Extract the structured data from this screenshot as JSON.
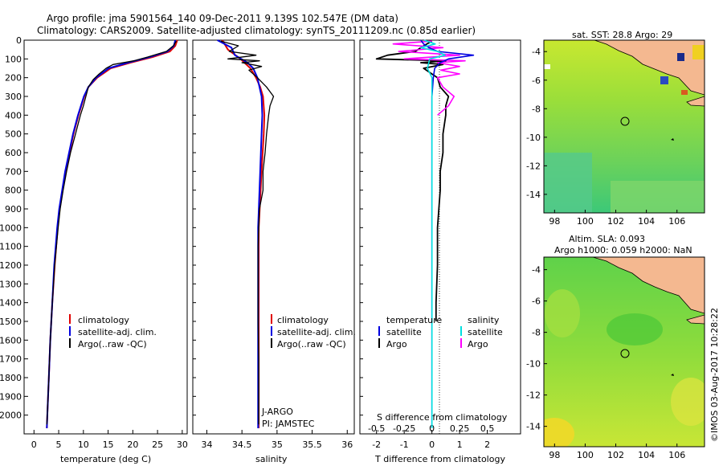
{
  "header": {
    "line1": "Argo profile: jma 5901564_140 09-Dec-2011 9.139S 102.547E (DM data)",
    "line2": "Climatology: CARS2009. Satellite-adjusted climatology: synTS_20111209.nc (0.85d earlier)"
  },
  "colors": {
    "climatology": "#e00000",
    "satellite": "#0000e0",
    "argo": "#000000",
    "sal_sat": "#00e0e0",
    "sal_argo": "#ff00ff",
    "land": "#f4b890"
  },
  "chart_data": [
    {
      "type": "line",
      "name": "temperature",
      "xlabel": "temperature (deg C)",
      "ylabel": "",
      "xlim": [
        -2,
        31
      ],
      "ylim": [
        2100,
        0
      ],
      "xticks": [
        "0",
        "5",
        "10",
        "15",
        "20",
        "25",
        "30"
      ],
      "yticks": [
        "0",
        "100",
        "200",
        "300",
        "400",
        "500",
        "600",
        "700",
        "800",
        "900",
        "1000",
        "1100",
        "1200",
        "1300",
        "1400",
        "1500",
        "1600",
        "1700",
        "1800",
        "1900",
        "2000"
      ],
      "legend": [
        "climatology",
        "satellite-adj. clim.",
        "Argo(..raw -QC)"
      ],
      "series": [
        {
          "name": "climatology",
          "depth": [
            0,
            30,
            60,
            90,
            120,
            150,
            200,
            250,
            300,
            400,
            500,
            600,
            700,
            800,
            900,
            1000,
            1200,
            1400,
            1600,
            1800,
            2000,
            2070
          ],
          "values": [
            29.0,
            28.6,
            27.5,
            24.0,
            19.5,
            15.5,
            12.8,
            11.0,
            10.2,
            9.0,
            8.0,
            7.2,
            6.4,
            5.8,
            5.2,
            4.8,
            4.2,
            3.7,
            3.3,
            3.0,
            2.7,
            2.6
          ]
        },
        {
          "name": "satellite-adj. clim.",
          "depth": [
            0,
            30,
            60,
            90,
            120,
            150,
            200,
            250,
            300,
            400,
            500,
            600,
            700,
            800,
            900,
            1000,
            1200,
            1400,
            1600,
            1800,
            2000,
            2070
          ],
          "values": [
            28.6,
            28.3,
            27.0,
            23.4,
            19.0,
            15.1,
            12.6,
            11.0,
            10.1,
            8.9,
            7.9,
            7.1,
            6.3,
            5.7,
            5.1,
            4.7,
            4.1,
            3.7,
            3.3,
            3.0,
            2.7,
            2.6
          ]
        },
        {
          "name": "Argo",
          "depth": [
            5,
            30,
            60,
            90,
            110,
            130,
            150,
            180,
            210,
            250,
            300,
            350,
            400,
            500,
            600,
            700,
            800,
            900,
            1000,
            1200,
            1400,
            1600,
            1800,
            2000,
            2050
          ],
          "values": [
            28.8,
            28.2,
            26.8,
            23.0,
            20.2,
            16.0,
            14.6,
            13.2,
            12.0,
            11.0,
            10.5,
            10.0,
            9.4,
            8.4,
            7.4,
            6.6,
            5.9,
            5.3,
            4.9,
            4.2,
            3.7,
            3.3,
            3.0,
            2.7,
            2.6
          ]
        }
      ]
    },
    {
      "type": "line",
      "name": "salinity",
      "xlabel": "salinity",
      "ylabel": "",
      "xlim": [
        33.8,
        36.1
      ],
      "ylim": [
        2100,
        0
      ],
      "xticks": [
        "34",
        "34.5",
        "35",
        "35.5",
        "36"
      ],
      "legend": [
        "climatology",
        "satellite-adj. clim.",
        "Argo(..raw -QC)"
      ],
      "series": [
        {
          "name": "climatology",
          "depth": [
            0,
            50,
            100,
            150,
            200,
            250,
            300,
            400,
            500,
            700,
            1000,
            1500,
            2070
          ],
          "values": [
            34.22,
            34.3,
            34.48,
            34.62,
            34.7,
            34.76,
            34.8,
            34.82,
            34.81,
            34.78,
            34.74,
            34.74,
            34.74
          ]
        },
        {
          "name": "satellite-adj. clim.",
          "depth": [
            0,
            40,
            80,
            120,
            150,
            200,
            250,
            300,
            400,
            500,
            700,
            1000,
            1500,
            2070
          ],
          "values": [
            34.15,
            34.35,
            34.4,
            34.58,
            34.66,
            34.72,
            34.75,
            34.78,
            34.79,
            34.78,
            34.76,
            34.73,
            34.73,
            34.73
          ]
        },
        {
          "name": "Argo",
          "depth": [
            5,
            30,
            60,
            80,
            100,
            110,
            120,
            140,
            160,
            200,
            250,
            300,
            350,
            400,
            500,
            600,
            700,
            800,
            900,
            1000,
            1100,
            1300,
            1500,
            1700,
            1900,
            2050
          ],
          "values": [
            34.2,
            34.45,
            34.32,
            34.7,
            34.3,
            34.75,
            34.5,
            34.78,
            34.6,
            34.72,
            34.85,
            34.95,
            34.9,
            34.88,
            34.85,
            34.83,
            34.8,
            34.8,
            34.75,
            34.74,
            34.73,
            34.73,
            34.73,
            34.74,
            34.74,
            34.74
          ]
        }
      ],
      "annotations": [
        "J-ARGO",
        "PI: JAMSTEC"
      ]
    },
    {
      "type": "line",
      "name": "differences",
      "xlabel": "T difference from climatology",
      "xlabel2": "S difference from climatology",
      "xlim_T": [
        -2.6,
        3.2
      ],
      "xlim_S": [
        -0.65,
        0.8
      ],
      "ylim": [
        2100,
        0
      ],
      "xticks": [
        "-2",
        "-1",
        "0",
        "1",
        "2"
      ],
      "xticks2": [
        "-0.5",
        "-0.25",
        "0",
        "0.25",
        "0.5"
      ],
      "legend_headers": [
        "temperature",
        "salinity"
      ],
      "legend": [
        "satellite",
        "Argo",
        "satellite",
        "Argo"
      ],
      "series": [
        {
          "name": "T satellite",
          "depth": [
            0,
            20,
            40,
            60,
            80,
            100,
            120,
            150,
            200,
            300,
            500,
            1000,
            2070
          ],
          "values": [
            -0.4,
            -0.3,
            -0.1,
            0.2,
            1.5,
            0.6,
            0.3,
            0.1,
            0.05,
            0.0,
            0.0,
            0.0,
            0.0
          ]
        },
        {
          "name": "T Argo",
          "depth": [
            5,
            30,
            60,
            80,
            100,
            110,
            120,
            130,
            150,
            200,
            250,
            300,
            350,
            400,
            500,
            600,
            700,
            800,
            900,
            1000,
            1200,
            1400,
            1500
          ],
          "values": [
            0.0,
            -0.3,
            -0.6,
            -1.6,
            -2.0,
            0.5,
            -0.4,
            0.4,
            -0.3,
            0.2,
            0.3,
            0.6,
            0.5,
            0.5,
            0.4,
            0.4,
            0.3,
            0.3,
            0.25,
            0.2,
            0.2,
            0.15,
            0.15
          ]
        },
        {
          "name": "S satellite",
          "depth": [
            0,
            20,
            40,
            60,
            80,
            100,
            150,
            200,
            300,
            500,
            1000,
            2070
          ],
          "values": [
            -0.07,
            0.03,
            -0.1,
            0.05,
            0.12,
            -0.02,
            -0.04,
            0.0,
            0.0,
            0.0,
            0.0,
            0.0
          ]
        },
        {
          "name": "S Argo",
          "depth": [
            5,
            20,
            40,
            60,
            80,
            100,
            110,
            120,
            140,
            160,
            180,
            200,
            250,
            300,
            350,
            400
          ],
          "values": [
            0.0,
            -0.35,
            0.1,
            -0.3,
            0.25,
            -0.25,
            0.3,
            0.05,
            0.25,
            0.08,
            0.25,
            0.05,
            0.1,
            0.2,
            0.15,
            0.05
          ]
        }
      ]
    }
  ],
  "maps": {
    "sst": {
      "title": "sat. SST: 28.8 Argo: 29",
      "xticks": [
        "98",
        "100",
        "102",
        "104",
        "106"
      ],
      "yticks": [
        "-4",
        "-6",
        "-8",
        "-10",
        "-12",
        "-14"
      ],
      "argo_lon": 102.547,
      "argo_lat": -9.139
    },
    "sla": {
      "title1": "Altim. SLA: 0.093",
      "title2": "Argo h1000: 0.059 h2000: NaN",
      "xticks": [
        "98",
        "100",
        "102",
        "104",
        "106"
      ],
      "yticks": [
        "-4",
        "-6",
        "-8",
        "-10",
        "-12",
        "-14"
      ],
      "argo_lon": 102.547,
      "argo_lat": -9.139
    }
  },
  "footer": {
    "credit": "©IMOS 03-Aug-2017 10:28:22"
  }
}
